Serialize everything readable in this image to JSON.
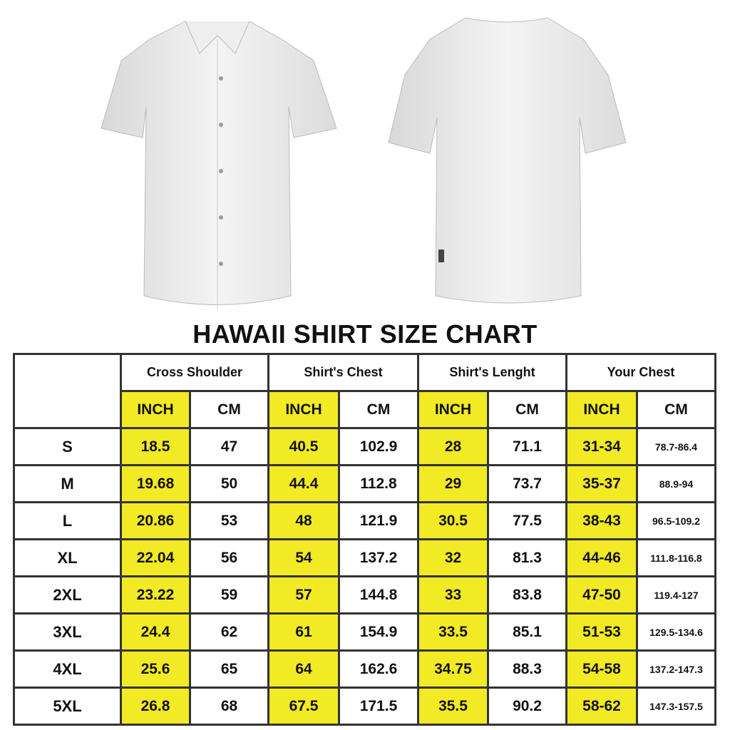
{
  "title": "HAWAII SHIRT SIZE CHART",
  "colors": {
    "highlight": "#f2ea24",
    "border": "#333333"
  },
  "images": {
    "front": "white-shirt-front",
    "back": "white-shirt-back"
  },
  "table": {
    "groups": [
      "Cross Shoulder",
      "Shirt's Chest",
      "Shirt's Lenght",
      "Your Chest"
    ],
    "units": [
      "INCH",
      "CM"
    ],
    "rows": [
      {
        "size": "S",
        "values": [
          "18.5",
          "47",
          "40.5",
          "102.9",
          "28",
          "71.1",
          "31-34",
          "78.7-86.4"
        ]
      },
      {
        "size": "M",
        "values": [
          "19.68",
          "50",
          "44.4",
          "112.8",
          "29",
          "73.7",
          "35-37",
          "88.9-94"
        ]
      },
      {
        "size": "L",
        "values": [
          "20.86",
          "53",
          "48",
          "121.9",
          "30.5",
          "77.5",
          "38-43",
          "96.5-109.2"
        ]
      },
      {
        "size": "XL",
        "values": [
          "22.04",
          "56",
          "54",
          "137.2",
          "32",
          "81.3",
          "44-46",
          "111.8-116.8"
        ]
      },
      {
        "size": "2XL",
        "values": [
          "23.22",
          "59",
          "57",
          "144.8",
          "33",
          "83.8",
          "47-50",
          "119.4-127"
        ]
      },
      {
        "size": "3XL",
        "values": [
          "24.4",
          "62",
          "61",
          "154.9",
          "33.5",
          "85.1",
          "51-53",
          "129.5-134.6"
        ]
      },
      {
        "size": "4XL",
        "values": [
          "25.6",
          "65",
          "64",
          "162.6",
          "34.75",
          "88.3",
          "54-58",
          "137.2-147.3"
        ]
      },
      {
        "size": "5XL",
        "values": [
          "26.8",
          "68",
          "67.5",
          "171.5",
          "35.5",
          "90.2",
          "58-62",
          "147.3-157.5"
        ]
      }
    ]
  }
}
